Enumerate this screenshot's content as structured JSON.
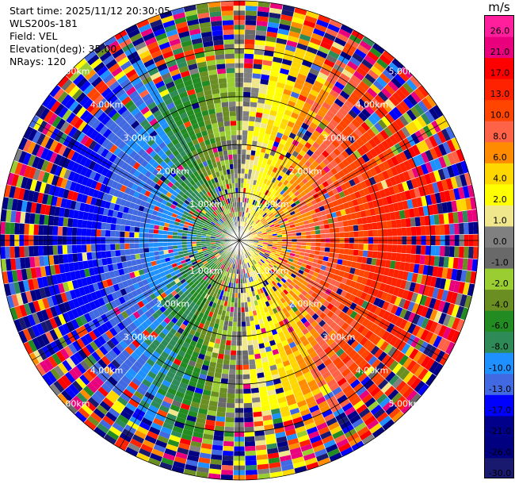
{
  "info": {
    "start_time": "Start time: 2025/11/12 20:30:05",
    "station": "WLS200s-181",
    "field": "Field: VEL",
    "elevation": "Elevation(deg): 35.00",
    "nrays": "NRays: 120"
  },
  "colorbar": {
    "unit": "m/s",
    "ticks": [
      "26.0",
      "21.0",
      "17.0",
      "13.0",
      "10.0",
      "8.0",
      "6.0",
      "4.0",
      "2.0",
      "1.0",
      "0.0",
      "-1.0",
      "-2.0",
      "-4.0",
      "-6.0",
      "-8.0",
      "-10.0",
      "-13.0",
      "-17.0",
      "-21.0",
      "-26.0",
      "-30.0"
    ],
    "colors": [
      "#ff1f9c",
      "#e8007c",
      "#ff0000",
      "#ff2200",
      "#ff4500",
      "#ff6347",
      "#ff8c00",
      "#ffd700",
      "#ffff00",
      "#f0e68c",
      "#808080",
      "#696969",
      "#9acd32",
      "#6b8e23",
      "#228b22",
      "#2e8b57",
      "#1e90ff",
      "#4169e1",
      "#0000ff",
      "#00008b",
      "#000080",
      "#191970"
    ]
  },
  "chart_data": {
    "type": "ppi",
    "field": "VEL",
    "unit": "m/s",
    "elevation_deg": 35.0,
    "n_rays": 120,
    "range_rings_km": [
      1.0,
      2.0,
      3.0,
      4.0,
      5.0
    ],
    "range_ring_labels": [
      "1.00km",
      "2.00km",
      "3.00km",
      "4.00km",
      "5.00km"
    ],
    "vlim": [
      -30.0,
      26.0
    ],
    "note_pattern": "dipole: approaching (blue, ~-13 to -17 m/s) toward west, receding (red, ~13 to 21 m/s) toward east; noisy beyond ~4 km"
  }
}
